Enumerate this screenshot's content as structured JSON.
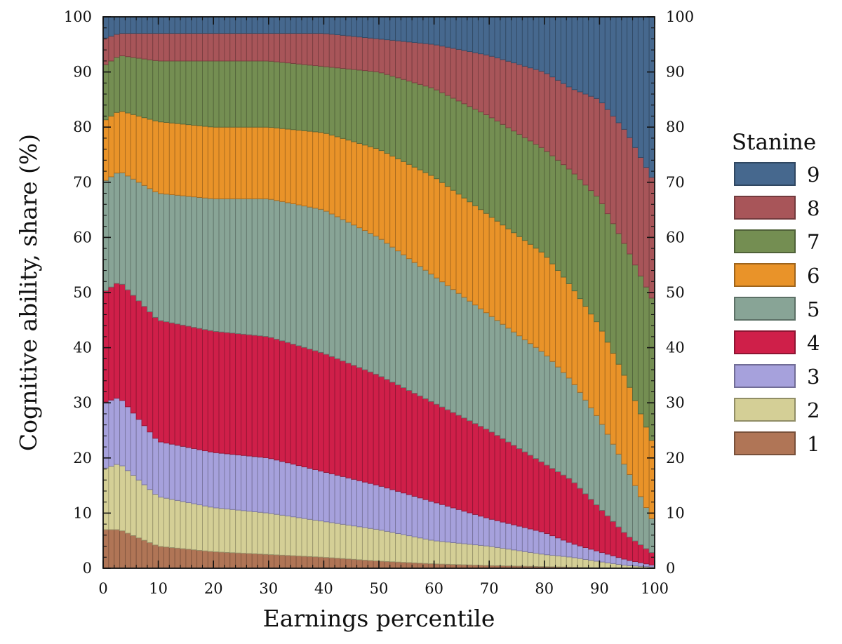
{
  "chart_data": {
    "type": "bar",
    "stacked": true,
    "xlabel": "Earnings percentile",
    "ylabel": "Cognitive ability,  share (%)",
    "xlim": [
      0,
      100
    ],
    "ylim": [
      0,
      100
    ],
    "xticks": [
      "0",
      "10",
      "20",
      "30",
      "40",
      "50",
      "60",
      "70",
      "80",
      "90",
      "100"
    ],
    "yticks": [
      "0",
      "10",
      "20",
      "30",
      "40",
      "50",
      "60",
      "70",
      "80",
      "90",
      "100"
    ],
    "legend_title": "Stanine",
    "legend_position": "right",
    "n_bins": 100,
    "bin_width": 1,
    "curve_note": "cumulative share (%) below each stanine boundary at listed percentiles; values between anchors follow the same trend",
    "percentile_anchors": [
      0,
      3,
      10,
      20,
      30,
      40,
      50,
      60,
      70,
      80,
      85,
      90,
      95,
      100
    ],
    "series": [
      {
        "name": "1",
        "color": "#b07556",
        "cumulative_top": [
          7,
          7,
          4,
          3,
          2.5,
          2,
          1.3,
          0.8,
          0.5,
          0.3,
          0.2,
          0.1,
          0.05,
          0
        ]
      },
      {
        "name": "2",
        "color": "#d4cf96",
        "cumulative_top": [
          18,
          19,
          13,
          11,
          10,
          8.5,
          7,
          5,
          4,
          2.5,
          2,
          1.2,
          0.5,
          0.2
        ]
      },
      {
        "name": "3",
        "color": "#a6a1dc",
        "cumulative_top": [
          30,
          31,
          23,
          21,
          20,
          17.5,
          15,
          12,
          9,
          6.5,
          4.5,
          3,
          1.5,
          0.5
        ]
      },
      {
        "name": "4",
        "color": "#cf1f49",
        "cumulative_top": [
          50,
          52,
          45,
          43,
          42,
          39,
          35,
          30,
          25,
          19,
          16,
          11,
          6,
          2.5
        ]
      },
      {
        "name": "5",
        "color": "#88a496",
        "cumulative_top": [
          70,
          72,
          68,
          67,
          67,
          65,
          60,
          53,
          46,
          39,
          34,
          27,
          18,
          8
        ]
      },
      {
        "name": "6",
        "color": "#e99329",
        "cumulative_top": [
          81,
          83,
          81,
          80,
          80,
          79,
          76,
          71,
          64,
          57,
          51,
          44,
          34,
          22
        ]
      },
      {
        "name": "7",
        "color": "#748e52",
        "cumulative_top": [
          91,
          93,
          92,
          92,
          92,
          91,
          90,
          87,
          82,
          76,
          72,
          67,
          58,
          48
        ]
      },
      {
        "name": "8",
        "color": "#a85559",
        "cumulative_top": [
          96,
          97,
          97,
          97,
          97,
          97,
          96,
          95,
          93,
          90,
          87,
          85,
          79,
          70
        ]
      },
      {
        "name": "9",
        "color": "#46688e",
        "cumulative_top": [
          100,
          100,
          100,
          100,
          100,
          100,
          100,
          100,
          100,
          100,
          100,
          100,
          100,
          100
        ]
      }
    ]
  }
}
